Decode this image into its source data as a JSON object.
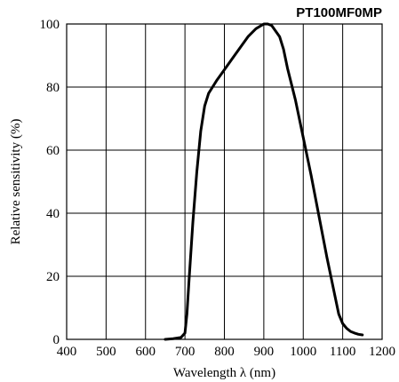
{
  "chart_data": {
    "type": "line",
    "title": "PT100MF0MP",
    "xlabel": "Wavelength  λ (nm)",
    "ylabel": "Relative sensitivity (%)",
    "xlim": [
      400,
      1200
    ],
    "ylim": [
      0,
      100
    ],
    "x_ticks": [
      400,
      500,
      600,
      700,
      800,
      900,
      1000,
      1100,
      1200
    ],
    "y_ticks": [
      0,
      20,
      40,
      60,
      80,
      100
    ],
    "x_tick_labels": [
      "400",
      "500",
      "600",
      "700",
      "800",
      "900",
      "1000",
      "1100",
      "1200"
    ],
    "y_tick_labels": [
      "0",
      "20",
      "40",
      "60",
      "80",
      "100"
    ],
    "grid": true,
    "series": [
      {
        "x": [
          650,
          670,
          690,
          700,
          705,
          710,
          720,
          730,
          740,
          750,
          760,
          770,
          780,
          800,
          820,
          840,
          860,
          880,
          900,
          910,
          920,
          940,
          950,
          960,
          980,
          1000,
          1020,
          1040,
          1060,
          1080,
          1090,
          1100,
          1110,
          1120,
          1130,
          1140,
          1150
        ],
        "y": [
          0,
          0.2,
          0.6,
          2,
          8,
          18,
          37,
          53,
          66,
          74,
          78,
          80,
          82,
          85.5,
          89,
          92.5,
          96,
          98.5,
          100,
          100,
          99.5,
          96,
          92,
          86,
          76,
          64,
          52,
          39,
          26,
          14,
          8,
          5,
          3.5,
          2.5,
          2,
          1.6,
          1.4
        ]
      }
    ]
  }
}
